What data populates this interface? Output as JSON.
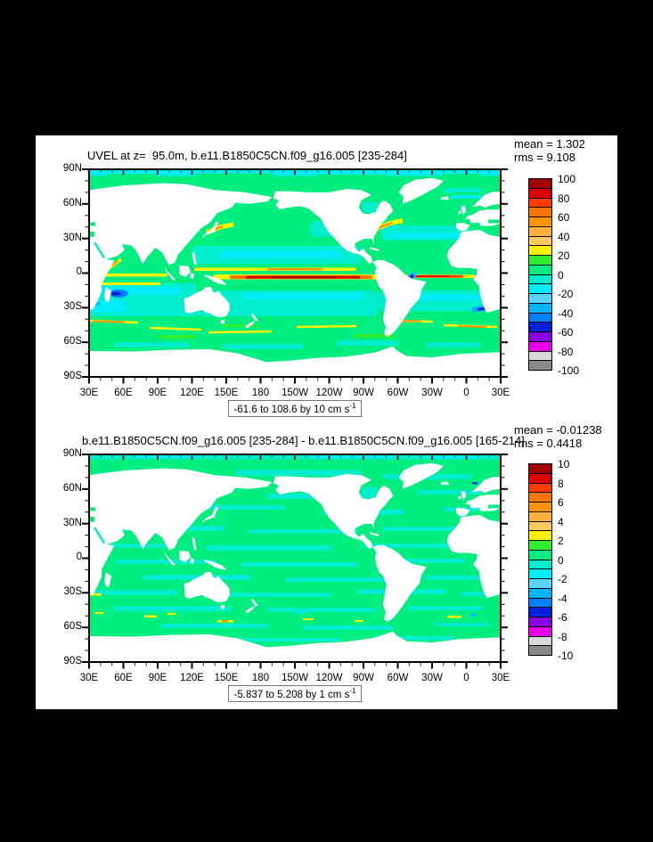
{
  "figure_bg": "#000000",
  "panel_bg": "#ffffff",
  "colorbar_colors": [
    "#a50000",
    "#dd0000",
    "#ff3c00",
    "#ff7300",
    "#ff9400",
    "#ffb140",
    "#ffc961",
    "#fff200",
    "#2fee2f",
    "#00ed80",
    "#00eecd",
    "#00ecff",
    "#55d6ff",
    "#00b4ff",
    "#0080ff",
    "#0022dd",
    "#8800e0",
    "#e800e8",
    "#d9d9d9",
    "#8a8a8a"
  ],
  "plots": [
    {
      "title": "UVEL at z=  95.0m, b.e11.B1850C5CN.f09_g16.005 [235-284]",
      "stats_mean": "mean = 1.302",
      "stats_rms": "rms = 9.108",
      "caption_main": "-61.6 to 108.6 by 10 cm s",
      "caption_sup": "-1",
      "y_ticks": [
        "90N",
        "60N",
        "30N",
        "0",
        "30S",
        "60S",
        "90S"
      ],
      "x_ticks": [
        "30E",
        "60E",
        "90E",
        "120E",
        "150E",
        "180",
        "150W",
        "120W",
        "90W",
        "60W",
        "30W",
        "0",
        "30E"
      ],
      "colorbar_labels": [
        "100",
        "80",
        "60",
        "40",
        "20",
        "0",
        "-20",
        "-40",
        "-60",
        "-80",
        "-100"
      ]
    },
    {
      "title": "b.e11.B1850C5CN.f09_g16.005 [235-284] - b.e11.B1850C5CN.f09_g16.005 [165-214]",
      "stats_mean": "mean = -0.01238",
      "stats_rms": "rms = 0.4418",
      "caption_main": "-5.837 to 5.208 by 1 cm s",
      "caption_sup": "-1",
      "y_ticks": [
        "90N",
        "60N",
        "30N",
        "0",
        "30S",
        "60S",
        "90S"
      ],
      "x_ticks": [
        "30E",
        "60E",
        "90E",
        "120E",
        "150E",
        "180",
        "150W",
        "120W",
        "90W",
        "60W",
        "30W",
        "0",
        "30E"
      ],
      "colorbar_labels": [
        "10",
        "8",
        "6",
        "4",
        "2",
        "0",
        "-2",
        "-4",
        "-6",
        "-8",
        "-10"
      ]
    }
  ],
  "chart_data": [
    {
      "type": "heatmap",
      "subtype": "global lat-lon filled contour map",
      "title": "UVEL at z=  95.0m, b.e11.B1850C5CN.f09_g16.005 [235-284]",
      "variable": "UVEL (zonal velocity)",
      "depth": "95.0m",
      "units": "cm s^-1",
      "mean": 1.302,
      "rms": 9.108,
      "field_min": -61.6,
      "field_max": 108.6,
      "contour_interval": 10,
      "range_label": "-61.6 to 108.6 by 10 cm s^-1",
      "colorbar_levels": [
        100,
        90,
        80,
        70,
        60,
        50,
        40,
        30,
        20,
        10,
        0,
        -10,
        -20,
        -30,
        -40,
        -50,
        -60,
        -70,
        -80,
        -90,
        -100
      ],
      "colorbar_labeled_levels": [
        100,
        80,
        60,
        40,
        20,
        0,
        -20,
        -40,
        -60,
        -80,
        -100
      ],
      "x_axis": {
        "label_ticks": [
          "30E",
          "60E",
          "90E",
          "120E",
          "150E",
          "180",
          "150W",
          "120W",
          "90W",
          "60W",
          "30W",
          "0",
          "30E"
        ],
        "range_deg_east": [
          30,
          390
        ],
        "minor_tick_deg": 10
      },
      "y_axis": {
        "label_ticks": [
          "90N",
          "60N",
          "30N",
          "0",
          "30S",
          "60S",
          "90S"
        ],
        "range": [
          -90,
          90
        ],
        "minor_tick_deg": 10
      },
      "legend_position": "right vertical labelbar",
      "grid": false,
      "description": "Ocean mostly +0-10 green and -10-0 turquoise; strong red/orange eastward equatorial undercurrent across Pacific and Atlantic, yellow equatorial jets in Indian Ocean, yellow/orange ACC streaks 40-55S, blue westward flow near NE Brazil, east of Madagascar and at 35S near right edge; continents blank white."
    },
    {
      "type": "heatmap",
      "subtype": "global lat-lon filled contour difference map",
      "title": "b.e11.B1850C5CN.f09_g16.005 [235-284] - b.e11.B1850C5CN.f09_g16.005 [165-214]",
      "variable": "UVEL difference",
      "units": "cm s^-1",
      "mean": -0.01238,
      "rms": 0.4418,
      "field_min": -5.837,
      "field_max": 5.208,
      "contour_interval": 1,
      "range_label": "-5.837 to 5.208 by 1 cm s^-1",
      "colorbar_levels": [
        10,
        9,
        8,
        7,
        6,
        5,
        4,
        3,
        2,
        1,
        0,
        -1,
        -2,
        -3,
        -4,
        -5,
        -6,
        -7,
        -8,
        -9,
        -10
      ],
      "colorbar_labeled_levels": [
        10,
        8,
        6,
        4,
        2,
        0,
        -2,
        -4,
        -6,
        -8,
        -10
      ],
      "x_axis": {
        "label_ticks": [
          "30E",
          "60E",
          "90E",
          "120E",
          "150E",
          "180",
          "150W",
          "120W",
          "90W",
          "60W",
          "30W",
          "0",
          "30E"
        ],
        "range_deg_east": [
          30,
          390
        ],
        "minor_tick_deg": 10
      },
      "y_axis": {
        "label_ticks": [
          "90N",
          "60N",
          "30N",
          "0",
          "30S",
          "60S",
          "90S"
        ],
        "range": [
          -90,
          90
        ],
        "minor_tick_deg": 10
      },
      "legend_position": "right vertical labelbar",
      "grid": false,
      "description": "Difference field near zero: mottled green/turquoise ocean with small yellow and blue specks along the Southern Ocean; continents blank white."
    }
  ]
}
